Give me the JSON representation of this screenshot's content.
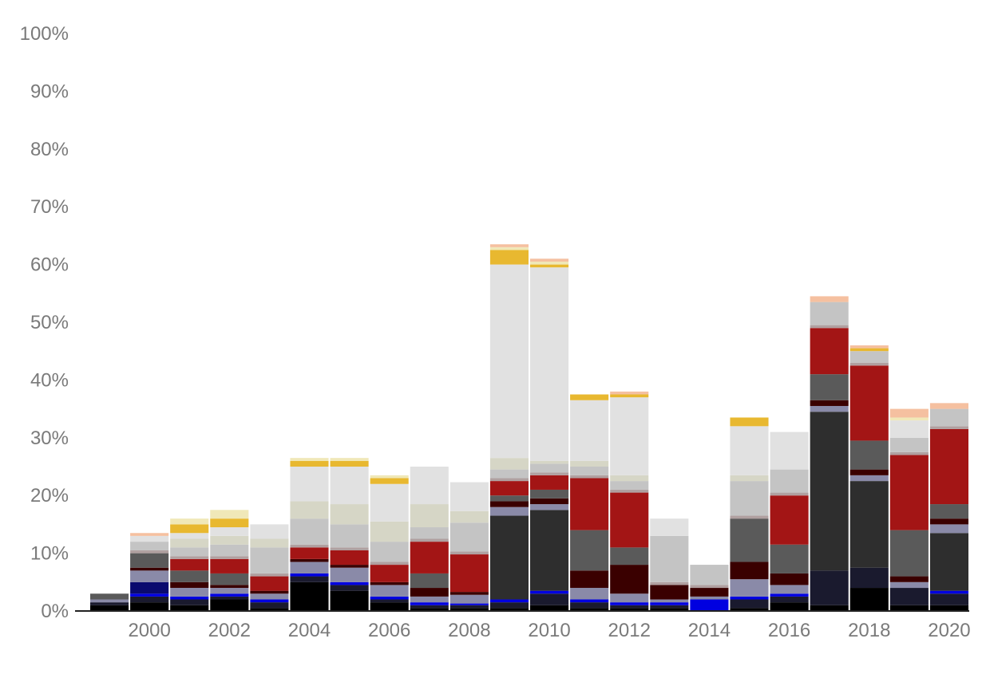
{
  "chart_data": {
    "type": "bar",
    "stacked": true,
    "categories": [
      "1999",
      "2000",
      "2001",
      "2002",
      "2003",
      "2004",
      "2005",
      "2006",
      "2007",
      "2008",
      "2009",
      "2010",
      "2011",
      "2012",
      "2013",
      "2014",
      "2015",
      "2016",
      "2017",
      "2018",
      "2019",
      "2020"
    ],
    "x_tick_labels": [
      "2000",
      "2002",
      "2004",
      "2006",
      "2008",
      "2010",
      "2012",
      "2014",
      "2016",
      "2018",
      "2020"
    ],
    "y_tick_labels": [
      "0%",
      "10%",
      "20%",
      "30%",
      "40%",
      "50%",
      "60%",
      "70%",
      "80%",
      "90%",
      "100%"
    ],
    "ylim": [
      0,
      100
    ],
    "y_unit": "%",
    "grid": false,
    "legend": "none",
    "note": "",
    "series": [
      {
        "color": "#000000",
        "values": [
          1,
          1.5,
          1,
          2,
          0.5,
          5,
          3.5,
          1.5,
          0.5,
          0.5,
          0.5,
          1,
          0.5,
          0.5,
          0.5,
          0,
          0.5,
          1.5,
          1,
          4,
          1,
          1
        ]
      },
      {
        "color": "#1a1a2e",
        "values": [
          0.5,
          1,
          1,
          0.5,
          1,
          1,
          1,
          0.5,
          0.5,
          0.5,
          1,
          2,
          1,
          0.5,
          0.5,
          0,
          1.5,
          1,
          6,
          3.5,
          3,
          2
        ]
      },
      {
        "color": "#0000e0",
        "values": [
          0,
          0.5,
          0.5,
          0.5,
          0.5,
          0.5,
          0.5,
          0.5,
          0.5,
          0.3,
          0.5,
          0.5,
          0.5,
          0.5,
          0.5,
          2,
          0.5,
          0.5,
          0,
          0,
          0,
          0.5
        ]
      },
      {
        "color": "#0a0a6e",
        "values": [
          0,
          2,
          0,
          0,
          0,
          0,
          0,
          0,
          0,
          0,
          0,
          0,
          0,
          0,
          0,
          0,
          0,
          0,
          0,
          0,
          0,
          0
        ]
      },
      {
        "color": "#2e2e2e",
        "values": [
          0,
          0,
          0,
          0,
          0,
          0,
          0,
          0,
          0,
          0,
          14.5,
          14,
          0,
          0,
          0,
          0,
          0,
          0,
          27.5,
          15,
          0,
          10
        ]
      },
      {
        "color": "#8a8aa8",
        "values": [
          0.5,
          2,
          1.5,
          1,
          1,
          2,
          2.5,
          2,
          1,
          1.5,
          1.5,
          1,
          2,
          1.5,
          0.5,
          0.5,
          3,
          1.5,
          1,
          1,
          1,
          1.5
        ]
      },
      {
        "color": "#3a0000",
        "values": [
          0,
          0.5,
          1,
          0.5,
          0.5,
          0.5,
          0.5,
          0.5,
          1.5,
          0.5,
          1,
          1,
          3,
          5,
          2.5,
          1.5,
          3,
          2,
          1,
          1,
          1,
          1
        ]
      },
      {
        "color": "#5a5a5a",
        "values": [
          1,
          2.5,
          2,
          2,
          0,
          0,
          0,
          0,
          2.5,
          0,
          1,
          1.5,
          7,
          3,
          0,
          0,
          7.5,
          5,
          4.5,
          5,
          8,
          2.5
        ]
      },
      {
        "color": "#a31515",
        "values": [
          0,
          0,
          2,
          2.5,
          2.5,
          2,
          2.5,
          3,
          5.5,
          6.5,
          2.5,
          2.5,
          9,
          9.5,
          0,
          0,
          0,
          8.5,
          8,
          13,
          13,
          13
        ]
      },
      {
        "color": "#b0a0a0",
        "values": [
          0,
          0.5,
          0.5,
          0.5,
          0.5,
          0.5,
          0.5,
          0.5,
          0.5,
          0.5,
          0.5,
          0.5,
          0.5,
          0.5,
          0.5,
          0.5,
          0.5,
          0.5,
          0.5,
          0.5,
          0.5,
          0.5
        ]
      },
      {
        "color": "#c4c4c4",
        "values": [
          0,
          1.5,
          1.5,
          2,
          4.5,
          4.5,
          4,
          3.5,
          2,
          5,
          1.5,
          1.5,
          1.5,
          1.5,
          8,
          3.5,
          6,
          4,
          4,
          2,
          2.5,
          3
        ]
      },
      {
        "color": "#d6d6c6",
        "values": [
          0,
          0,
          1.5,
          1.5,
          1.5,
          3,
          3.5,
          3.5,
          4,
          2,
          2,
          0.5,
          1,
          1,
          0,
          0,
          1,
          0,
          0,
          0,
          0,
          0
        ]
      },
      {
        "color": "#e1e1e1",
        "values": [
          0,
          1,
          1,
          1.5,
          2.5,
          6,
          6.5,
          6.5,
          6.5,
          5,
          33.5,
          33.5,
          10.5,
          13.5,
          3,
          0,
          8.5,
          6.5,
          0,
          0,
          3,
          0
        ]
      },
      {
        "color": "#e8b830",
        "values": [
          0,
          0,
          1.5,
          1.5,
          0,
          1,
          1,
          1,
          0,
          0,
          2.5,
          0.5,
          1,
          0.5,
          0,
          0,
          1.5,
          0,
          0,
          0.5,
          0,
          0
        ]
      },
      {
        "color": "#f0e8b8",
        "values": [
          0,
          0,
          1,
          1.5,
          0,
          0.5,
          0.5,
          0.5,
          0,
          0,
          0.5,
          0.5,
          0,
          0,
          0,
          0,
          0,
          0,
          0,
          0,
          0.5,
          0
        ]
      },
      {
        "color": "#f5c0a0",
        "values": [
          0,
          0.5,
          0,
          0,
          0,
          0,
          0,
          0,
          0,
          0,
          0.5,
          0.5,
          0,
          0.5,
          0,
          0,
          0,
          0,
          1,
          0.5,
          1.5,
          1
        ]
      }
    ]
  }
}
